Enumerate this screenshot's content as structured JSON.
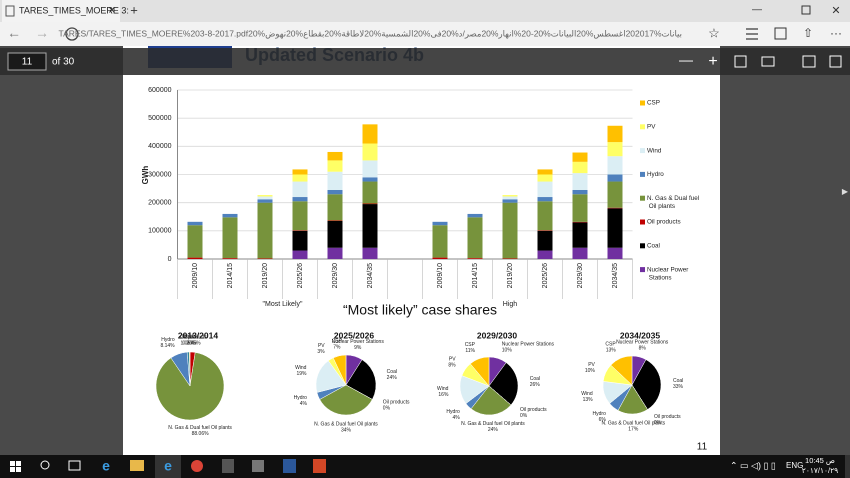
{
  "browser": {
    "tab_title": "TARES_TIMES_MOERE 3:",
    "url": "TARES/TARES_TIMES_MOERE%203-8-2017.pdf20%بيانات%202017اغسطس%20البيانات%20-20%انهار%20مصر/د%20فى%20الشمسية%20لاطاقة%20بقطاع%20نهوض",
    "page_input": "11",
    "page_count": "of 30"
  },
  "slide": {
    "title": "Updated Scenario 4b",
    "subtitle": "“Most likely” case shares",
    "page_number": "11",
    "bar_chart": {
      "type": "bar",
      "stacked": true,
      "y_label": "GWh",
      "categories": [
        "2009/10",
        "2014/15",
        "2019/20",
        "2025/26",
        "2029/30",
        "2034/35",
        null,
        "2009/10",
        "2014/15",
        "2019/20",
        "2025/26",
        "2029/30",
        "2034/35"
      ],
      "groups": [
        {
          "label": "\"Most Likely\""
        },
        {
          "label": "High"
        }
      ],
      "ylim": [
        0,
        600000
      ],
      "yticks": [
        0,
        100000,
        200000,
        300000,
        400000,
        500000,
        600000
      ],
      "series": [
        {
          "name": "Nuclear Power Stations",
          "color": "#7030a0",
          "values": [
            0,
            0,
            0,
            30000,
            40000,
            40000,
            null,
            0,
            0,
            0,
            30000,
            40000,
            40000
          ]
        },
        {
          "name": "Coal",
          "color": "#000000",
          "values": [
            0,
            0,
            0,
            70000,
            95000,
            155000,
            null,
            0,
            0,
            0,
            70000,
            90000,
            140000
          ]
        },
        {
          "name": "Oil products",
          "color": "#c00000",
          "values": [
            5000,
            3000,
            2000,
            2000,
            2000,
            2000,
            null,
            5000,
            3000,
            2000,
            2000,
            2000,
            2000
          ]
        },
        {
          "name": "N. Gas & Dual fuel Oil plants",
          "color": "#77933c",
          "values": [
            115000,
            145000,
            198000,
            103000,
            93000,
            78000,
            null,
            115000,
            145000,
            198000,
            103000,
            98000,
            93000
          ]
        },
        {
          "name": "Hydro",
          "color": "#4f81bd",
          "values": [
            12000,
            12000,
            12000,
            15000,
            15000,
            15000,
            null,
            12000,
            12000,
            12000,
            15000,
            15000,
            25000
          ]
        },
        {
          "name": "Wind",
          "color": "#dbeef4",
          "values": [
            0,
            0,
            10000,
            55000,
            65000,
            60000,
            null,
            0,
            0,
            10000,
            55000,
            60000,
            65000
          ]
        },
        {
          "name": "PV",
          "color": "#ffff66",
          "values": [
            0,
            0,
            5000,
            25000,
            40000,
            60000,
            null,
            0,
            0,
            5000,
            25000,
            40000,
            50000
          ]
        },
        {
          "name": "CSP",
          "color": "#ffc000",
          "values": [
            0,
            0,
            0,
            18000,
            30000,
            68000,
            null,
            0,
            0,
            0,
            18000,
            33000,
            58000
          ]
        }
      ]
    },
    "pies": [
      {
        "type": "pie",
        "title": "2013/2014",
        "slices": [
          {
            "name": "Oil products",
            "value": 2.45,
            "value_label": "2.45%",
            "color": "#c00000"
          },
          {
            "name": "N. Gas & Dual fuel Oil plants",
            "value": 88.06,
            "value_label": "88.06%",
            "color": "#77933c"
          },
          {
            "name": "Hydro",
            "value": 8.14,
            "value_label": "8.14%",
            "color": "#4f81bd"
          },
          {
            "name": "Wind",
            "value": 1.05,
            "value_label": "1.05%",
            "color": "#31859c"
          },
          {
            "name": "CSP",
            "value": 0.3,
            "value_label": "0.30%",
            "color": "#ffc000"
          }
        ]
      },
      {
        "type": "pie",
        "title": "2025/2026",
        "slices": [
          {
            "name": "Nuclear Power Stations",
            "value": 9,
            "value_label": "9%",
            "color": "#7030a0"
          },
          {
            "name": "Coal",
            "value": 24,
            "value_label": "24%",
            "color": "#000000"
          },
          {
            "name": "Oil products",
            "value": 0,
            "value_label": "0%",
            "color": "#c00000"
          },
          {
            "name": "N. Gas & Dual fuel Oil plants",
            "value": 34,
            "value_label": "34%",
            "color": "#77933c"
          },
          {
            "name": "Hydro",
            "value": 4,
            "value_label": "4%",
            "color": "#4f81bd"
          },
          {
            "name": "Wind",
            "value": 19,
            "value_label": "19%",
            "color": "#dbeef4"
          },
          {
            "name": "PV",
            "value": 3,
            "value_label": "3%",
            "color": "#ffff66"
          },
          {
            "name": "CSP",
            "value": 7,
            "value_label": "7%",
            "color": "#ffc000"
          }
        ]
      },
      {
        "type": "pie",
        "title": "2029/2030",
        "slices": [
          {
            "name": "Nuclear Power Stations",
            "value": 10,
            "value_label": "10%",
            "color": "#7030a0"
          },
          {
            "name": "Coal",
            "value": 26,
            "value_label": "26%",
            "color": "#000000"
          },
          {
            "name": "Oil products",
            "value": 0,
            "value_label": "0%",
            "color": "#c00000"
          },
          {
            "name": "N. Gas & Dual fuel Oil plants",
            "value": 24,
            "value_label": "24%",
            "color": "#77933c"
          },
          {
            "name": "Hydro",
            "value": 4,
            "value_label": "4%",
            "color": "#4f81bd"
          },
          {
            "name": "Wind",
            "value": 16,
            "value_label": "16%",
            "color": "#dbeef4"
          },
          {
            "name": "PV",
            "value": 8,
            "value_label": "8%",
            "color": "#ffff66"
          },
          {
            "name": "CSP",
            "value": 11,
            "value_label": "11%",
            "color": "#ffc000"
          }
        ]
      },
      {
        "type": "pie",
        "title": "2034/2035",
        "slices": [
          {
            "name": "Nuclear Power Stations",
            "value": 8,
            "value_label": "8%",
            "color": "#7030a0"
          },
          {
            "name": "Coal",
            "value": 33,
            "value_label": "33%",
            "color": "#000000"
          },
          {
            "name": "Oil products",
            "value": 0,
            "value_label": "0%",
            "color": "#c00000"
          },
          {
            "name": "N. Gas & Dual fuel Oil plants",
            "value": 17,
            "value_label": "17%",
            "color": "#77933c"
          },
          {
            "name": "Hydro",
            "value": 6,
            "value_label": "6%",
            "color": "#4f81bd"
          },
          {
            "name": "Wind",
            "value": 13,
            "value_label": "13%",
            "color": "#dbeef4"
          },
          {
            "name": "PV",
            "value": 10,
            "value_label": "10%",
            "color": "#ffff66"
          },
          {
            "name": "CSP",
            "value": 13,
            "value_label": "13%",
            "color": "#ffc000"
          }
        ]
      }
    ]
  },
  "taskbar": {
    "language": "ENG",
    "time": "10:45 ص",
    "date": "٢٠١٧/١٠/٢٩"
  }
}
